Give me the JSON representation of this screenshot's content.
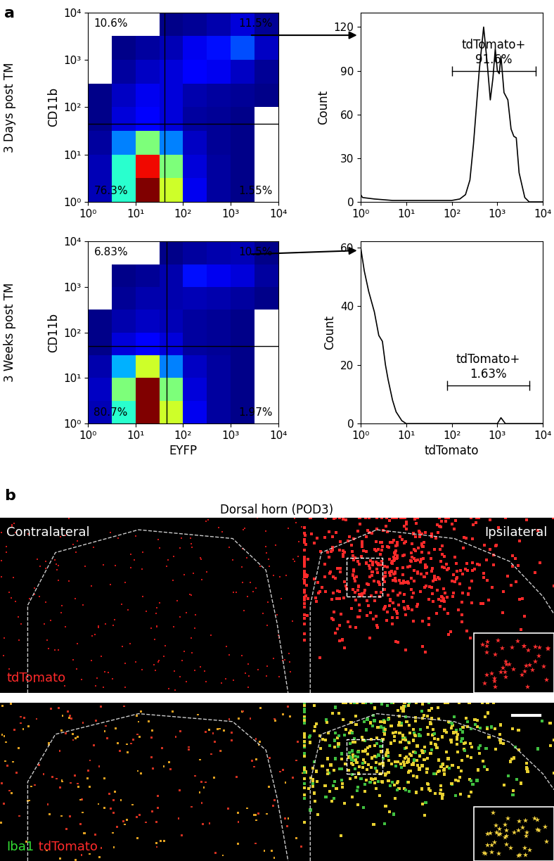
{
  "panel_labels": [
    "a",
    "b"
  ],
  "chart_data": [
    {
      "type": "density",
      "row_label": "3 Days post TM",
      "ylabel": "CD11b",
      "log": true,
      "xlim": [
        1,
        10000
      ],
      "ylim": [
        1,
        10000
      ],
      "xticks": [
        {
          "value": 1,
          "label": "10⁰"
        },
        {
          "value": 10,
          "label": "10¹"
        },
        {
          "value": 100,
          "label": "10²"
        },
        {
          "value": 1000,
          "label": "10³"
        },
        {
          "value": 10000,
          "label": "10⁴"
        }
      ],
      "yticks": [
        {
          "value": 1,
          "label": "10⁰"
        },
        {
          "value": 10,
          "label": "10¹"
        },
        {
          "value": 100,
          "label": "10²"
        },
        {
          "value": 1000,
          "label": "10³"
        },
        {
          "value": 10000,
          "label": "10⁴"
        }
      ],
      "x_bins": [
        1,
        3.16,
        10,
        31.6,
        100,
        316,
        1000,
        3162,
        10000
      ],
      "y_bins": [
        1,
        3.16,
        10,
        31.6,
        100,
        316,
        1000,
        3162,
        10000
      ],
      "cells": [
        [
          5,
          40,
          100,
          60,
          10,
          3,
          1,
          0
        ],
        [
          5,
          40,
          90,
          50,
          8,
          3,
          1,
          0
        ],
        [
          3,
          25,
          50,
          25,
          6,
          2,
          1,
          0
        ],
        [
          1,
          8,
          12,
          8,
          3,
          2,
          1,
          0
        ],
        [
          1,
          6,
          10,
          8,
          4,
          3,
          2,
          1
        ],
        [
          0,
          3,
          6,
          8,
          12,
          10,
          6,
          2
        ],
        [
          0,
          1,
          3,
          5,
          10,
          14,
          20,
          6
        ],
        [
          0,
          0,
          0,
          1,
          2,
          4,
          8,
          2
        ]
      ],
      "gates": {
        "x": 40,
        "y": 45
      },
      "quadrant_values": [
        10.6,
        11.5,
        76.3,
        1.55
      ],
      "quadrant_labels": [
        "10.6%",
        "11.5%",
        "76.3%",
        "1.55%"
      ]
    },
    {
      "type": "line",
      "ylabel": "Count",
      "log": "x",
      "color": "#000000",
      "xlim": [
        1,
        10000
      ],
      "ylim": [
        0,
        130
      ],
      "xticks": [
        {
          "value": 1,
          "label": "10⁰"
        },
        {
          "value": 10,
          "label": "10¹"
        },
        {
          "value": 100,
          "label": "10²"
        },
        {
          "value": 1000,
          "label": "10³"
        },
        {
          "value": 10000,
          "label": "10⁴"
        }
      ],
      "yticks": [
        0,
        30,
        60,
        90,
        120
      ],
      "x": [
        1,
        1.1,
        2,
        5,
        10,
        30,
        100,
        150,
        200,
        250,
        300,
        400,
        500,
        600,
        700,
        800,
        900,
        1000,
        1100,
        1200,
        1400,
        1700,
        2000,
        2300,
        2600,
        3000,
        4000,
        5000,
        10000
      ],
      "values": [
        5,
        3,
        2,
        1,
        1,
        1,
        1,
        2,
        5,
        15,
        40,
        90,
        120,
        95,
        70,
        85,
        105,
        90,
        88,
        100,
        75,
        70,
        50,
        45,
        44,
        20,
        3,
        0,
        0
      ],
      "gate": {
        "range": [
          100,
          7000
        ],
        "y": 90,
        "label": "tdTomato+",
        "value": 91.6,
        "value_label": "91.6%"
      }
    },
    {
      "type": "density",
      "row_label": "3 Weeks post TM",
      "xlabel": "EYFP",
      "ylabel": "CD11b",
      "log": true,
      "xlim": [
        1,
        10000
      ],
      "ylim": [
        1,
        10000
      ],
      "xticks": [
        {
          "value": 1,
          "label": "10⁰"
        },
        {
          "value": 10,
          "label": "10¹"
        },
        {
          "value": 100,
          "label": "10²"
        },
        {
          "value": 1000,
          "label": "10³"
        },
        {
          "value": 10000,
          "label": "10⁴"
        }
      ],
      "yticks": [
        {
          "value": 1,
          "label": "10⁰"
        },
        {
          "value": 10,
          "label": "10¹"
        },
        {
          "value": 100,
          "label": "10²"
        },
        {
          "value": 1000,
          "label": "10³"
        },
        {
          "value": 10000,
          "label": "10⁴"
        }
      ],
      "x_bins": [
        1,
        3.16,
        10,
        31.6,
        100,
        316,
        1000,
        3162,
        10000
      ],
      "y_bins": [
        1,
        3.16,
        10,
        31.6,
        100,
        316,
        1000,
        3162,
        10000
      ],
      "cells": [
        [
          5,
          40,
          100,
          60,
          10,
          3,
          1,
          0
        ],
        [
          6,
          50,
          100,
          50,
          8,
          3,
          1,
          0
        ],
        [
          4,
          30,
          60,
          25,
          6,
          3,
          1,
          0
        ],
        [
          1,
          8,
          12,
          8,
          3,
          2,
          1,
          0
        ],
        [
          1,
          4,
          6,
          5,
          3,
          2,
          1,
          0
        ],
        [
          0,
          2,
          4,
          4,
          5,
          4,
          3,
          1
        ],
        [
          0,
          1,
          2,
          4,
          14,
          10,
          8,
          3
        ],
        [
          0,
          0,
          0,
          1,
          3,
          4,
          5,
          1
        ]
      ],
      "gates": {
        "x": 45,
        "y": 50
      },
      "quadrant_values": [
        6.83,
        10.5,
        80.7,
        1.97
      ],
      "quadrant_labels": [
        "6.83%",
        "10.5%",
        "80.7%",
        "1.97%"
      ]
    },
    {
      "type": "line",
      "xlabel": "tdTomato",
      "ylabel": "Count",
      "log": "x",
      "color": "#000000",
      "xlim": [
        1,
        10000
      ],
      "ylim": [
        0,
        62
      ],
      "xticks": [
        {
          "value": 1,
          "label": "10⁰"
        },
        {
          "value": 10,
          "label": "10¹"
        },
        {
          "value": 100,
          "label": "10²"
        },
        {
          "value": 1000,
          "label": "10³"
        },
        {
          "value": 10000,
          "label": "10⁴"
        }
      ],
      "yticks": [
        0,
        20,
        40,
        60
      ],
      "x": [
        1,
        1.2,
        1.5,
        2,
        2.5,
        3,
        3.5,
        4,
        5,
        6,
        8,
        10,
        100,
        1000,
        1200,
        1500,
        10000
      ],
      "values": [
        60,
        52,
        45,
        38,
        30,
        28,
        20,
        15,
        8,
        4,
        1,
        0,
        0,
        0,
        2,
        0,
        0
      ],
      "gate": {
        "range": [
          80,
          5000
        ],
        "y": 13,
        "label": "tdTomato+",
        "value": 1.63,
        "value_label": "1.63%"
      }
    }
  ],
  "image": {
    "title": "Dorsal horn (POD3)",
    "top": {
      "left_label": "Contralateral",
      "right_label": "Ipsilateral",
      "stain_labels": [
        {
          "text": "tdTomato",
          "color": "#ff2a2a"
        }
      ]
    },
    "bottom": {
      "stain_labels": [
        {
          "text": "Iba1",
          "color": "#33dd33"
        },
        {
          "text": "tdTomato",
          "color": "#ff2a2a"
        }
      ]
    }
  }
}
